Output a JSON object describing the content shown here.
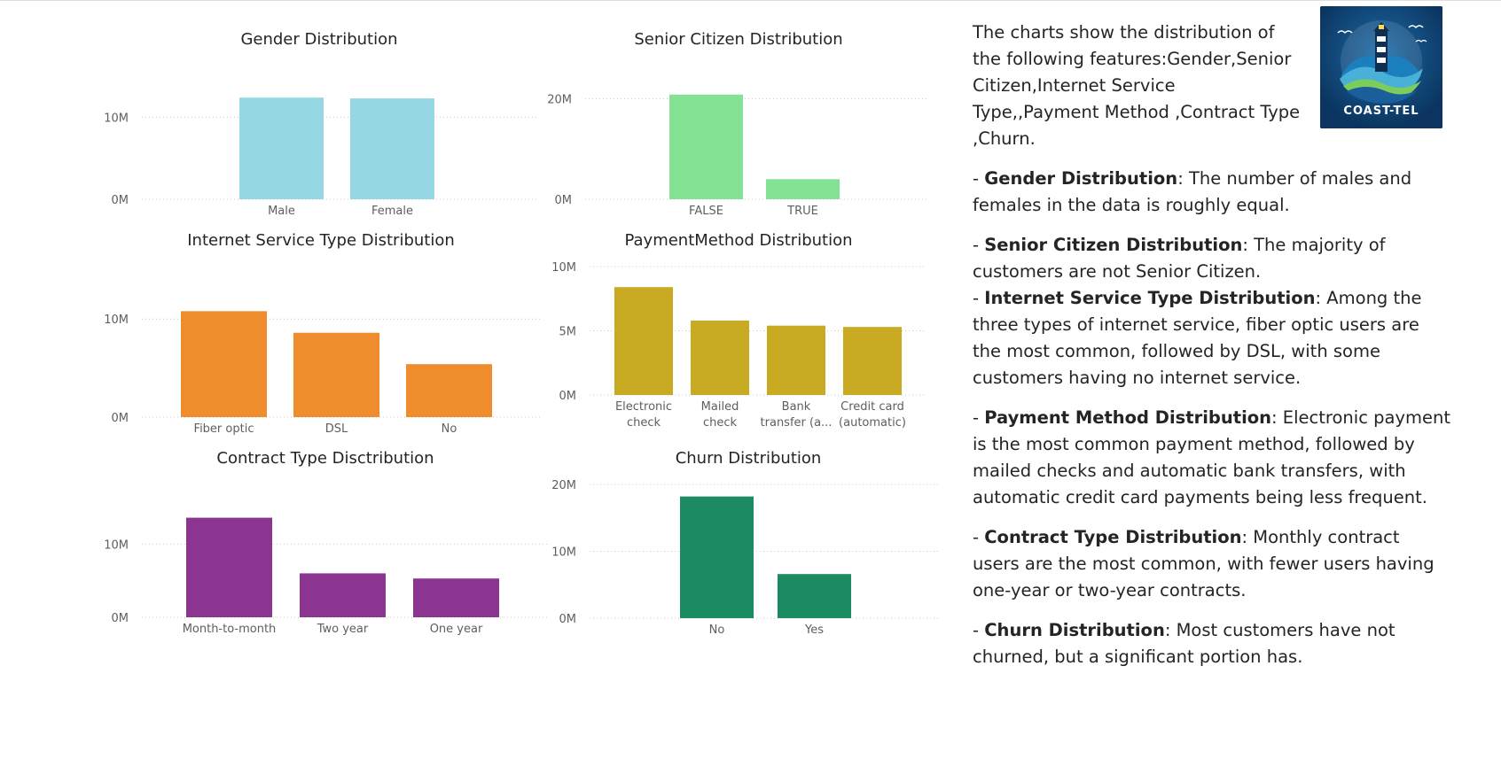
{
  "colors": {
    "gender": "#95d7e3",
    "senior": "#84e294",
    "internet": "#ef8c2d",
    "payment": "#c8aa23",
    "contract": "#8b3491",
    "churn": "#1c8b61"
  },
  "logo": {
    "text": "COAST-TEL",
    "icon": "lighthouse-wave-logo"
  },
  "text_panel": {
    "intro": "The charts show the distribution of the following features:Gender,Senior Citizen,Internet Service Type,,Payment Method ,Contract Type ,Churn.",
    "items": [
      {
        "term": "Gender Distribution",
        "text": ": The number of males and females in the data is roughly equal."
      },
      {
        "term": "Senior Citizen Distribution",
        "text": ": The majority of customers are not Senior Citizen."
      },
      {
        "term": "Internet Service Type Distribution",
        "text": ": Among the three types of internet service, fiber optic users are the most common, followed by DSL, with some customers having no internet service."
      },
      {
        "term": "Payment Method Distribution",
        "text": ": Electronic payment is the most common payment method, followed by mailed checks and automatic bank transfers, with automatic credit card payments being less frequent."
      },
      {
        "term": "Contract Type Distribution",
        "text": ": Monthly contract users are the most common, with fewer users having one-year or two-year contracts."
      },
      {
        "term": "Churn Distribution",
        "text": ": Most customers have not churned, but a significant portion has."
      }
    ]
  },
  "chart_data": [
    {
      "id": "gender",
      "type": "bar",
      "title": "Gender Distribution",
      "categories": [
        [
          "Male"
        ],
        [
          "Female"
        ]
      ],
      "values": [
        12400000,
        12300000
      ],
      "yticks": [
        0,
        10000000
      ],
      "ytick_labels": [
        "0M",
        "10M"
      ],
      "ylim": [
        0,
        13500000
      ],
      "grid": true,
      "color_key": "gender"
    },
    {
      "id": "senior",
      "type": "bar",
      "title": "Senior Citizen Distribution",
      "categories": [
        [
          "FALSE"
        ],
        [
          "TRUE"
        ]
      ],
      "values": [
        20800000,
        4000000
      ],
      "yticks": [
        0,
        20000000
      ],
      "ytick_labels": [
        "0M",
        "20M"
      ],
      "ylim": [
        0,
        22000000
      ],
      "grid": true,
      "color_key": "senior"
    },
    {
      "id": "internet",
      "type": "bar",
      "title": "Internet Service Type Distribution",
      "categories": [
        [
          "Fiber optic"
        ],
        [
          "DSL"
        ],
        [
          "No"
        ]
      ],
      "values": [
        10800000,
        8600000,
        5400000
      ],
      "yticks": [
        0,
        10000000
      ],
      "ytick_labels": [
        "0M",
        "10M"
      ],
      "ylim": [
        0,
        13000000
      ],
      "grid": true,
      "color_key": "internet"
    },
    {
      "id": "payment",
      "type": "bar",
      "title": "PaymentMethod Distribution",
      "categories": [
        [
          "Electronic",
          "check"
        ],
        [
          "Mailed",
          "check"
        ],
        [
          "Bank",
          "transfer (a..."
        ],
        [
          "Credit card",
          "(automatic)"
        ]
      ],
      "values": [
        8400000,
        5800000,
        5400000,
        5300000
      ],
      "yticks": [
        0,
        5000000,
        10000000
      ],
      "ytick_labels": [
        "0M",
        "5M",
        "10M"
      ],
      "ylim": [
        0,
        10000000
      ],
      "grid": true,
      "color_key": "payment"
    },
    {
      "id": "contract",
      "type": "bar",
      "title": "Contract Type Disctribution",
      "categories": [
        [
          "Month-to-month"
        ],
        [
          "Two year"
        ],
        [
          "One year"
        ]
      ],
      "values": [
        13600000,
        6000000,
        5300000
      ],
      "yticks": [
        0,
        10000000
      ],
      "ytick_labels": [
        "0M",
        "10M"
      ],
      "ylim": [
        0,
        15000000
      ],
      "grid": true,
      "color_key": "contract"
    },
    {
      "id": "churn",
      "type": "bar",
      "title": "Churn Distribution",
      "categories": [
        [
          "No"
        ],
        [
          "Yes"
        ]
      ],
      "values": [
        18200000,
        6600000
      ],
      "yticks": [
        0,
        10000000,
        20000000
      ],
      "ytick_labels": [
        "0M",
        "10M",
        "20M"
      ],
      "ylim": [
        0,
        20000000
      ],
      "grid": true,
      "color_key": "churn"
    }
  ]
}
